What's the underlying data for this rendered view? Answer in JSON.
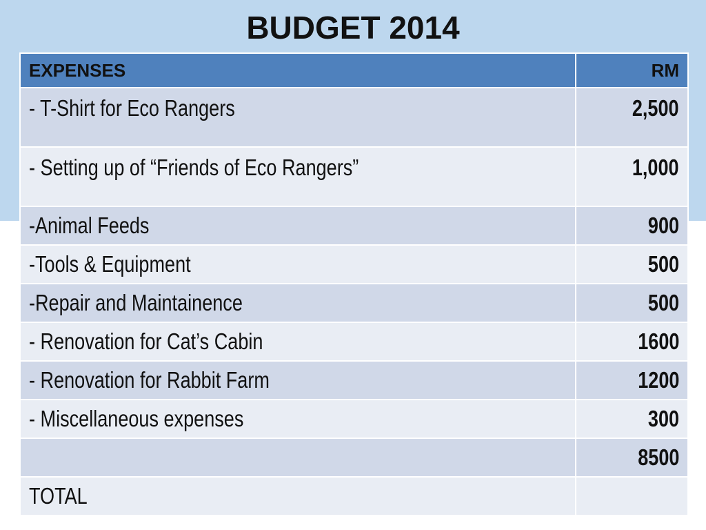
{
  "title": "BUDGET 2014",
  "table": {
    "headers": {
      "expenses": "EXPENSES",
      "amount": "RM"
    },
    "rows": [
      {
        "label": "- T-Shirt for Eco Rangers",
        "amount": "2,500"
      },
      {
        "label": "- Setting up of “Friends of Eco Rangers”",
        "amount": "1,000"
      },
      {
        "label": "-Animal Feeds",
        "amount": "900"
      },
      {
        "label": "-Tools & Equipment",
        "amount": "500"
      },
      {
        "label": "-Repair and Maintainence",
        "amount": "500"
      },
      {
        "label": "- Renovation for Cat’s Cabin",
        "amount": "1600"
      },
      {
        "label": "- Renovation for Rabbit Farm",
        "amount": "1200"
      },
      {
        "label": "- Miscellaneous expenses",
        "amount": "300"
      },
      {
        "label": "",
        "amount": "8500"
      },
      {
        "label": "TOTAL",
        "amount": ""
      }
    ]
  },
  "colors": {
    "header_bg": "#4f81bd",
    "row_odd": "#d0d8e8",
    "row_even": "#e9edf4",
    "top_band": "#bdd7ee"
  }
}
